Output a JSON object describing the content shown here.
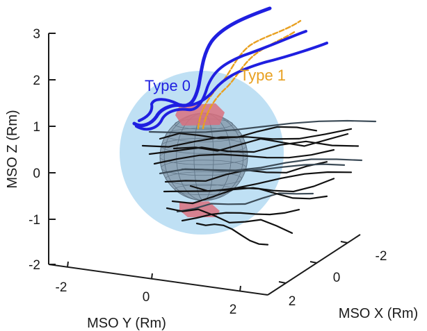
{
  "chart_data": {
    "type": "3d-line",
    "axes": {
      "x": {
        "label": "MSO X (Rm)",
        "ticks": [
          "-2",
          "0",
          "2"
        ]
      },
      "y": {
        "label": "MSO Y (Rm)",
        "ticks": [
          "-2",
          "0",
          "2"
        ]
      },
      "z": {
        "label": "MSO Z (Rm)",
        "ticks": [
          "3",
          "2",
          "1",
          "0",
          "-1",
          "-2"
        ]
      }
    },
    "annotations": [
      {
        "text": "Type 0",
        "color": "#1f1fe0"
      },
      {
        "text": "Type 1",
        "color": "#e8a020"
      }
    ],
    "series": [
      {
        "color": "#1f1fe0",
        "line_count": 3
      },
      {
        "color": "#e8a020",
        "line_count": 2
      },
      {
        "color": "#111111",
        "line_count": 16
      }
    ],
    "colors": {
      "planet": "#8fa6b8",
      "outer_shell": "#a9d6f0",
      "patch": "#d9707e",
      "type0": "#1f1fe0",
      "type1": "#e8a020",
      "lines": "#111111"
    }
  }
}
